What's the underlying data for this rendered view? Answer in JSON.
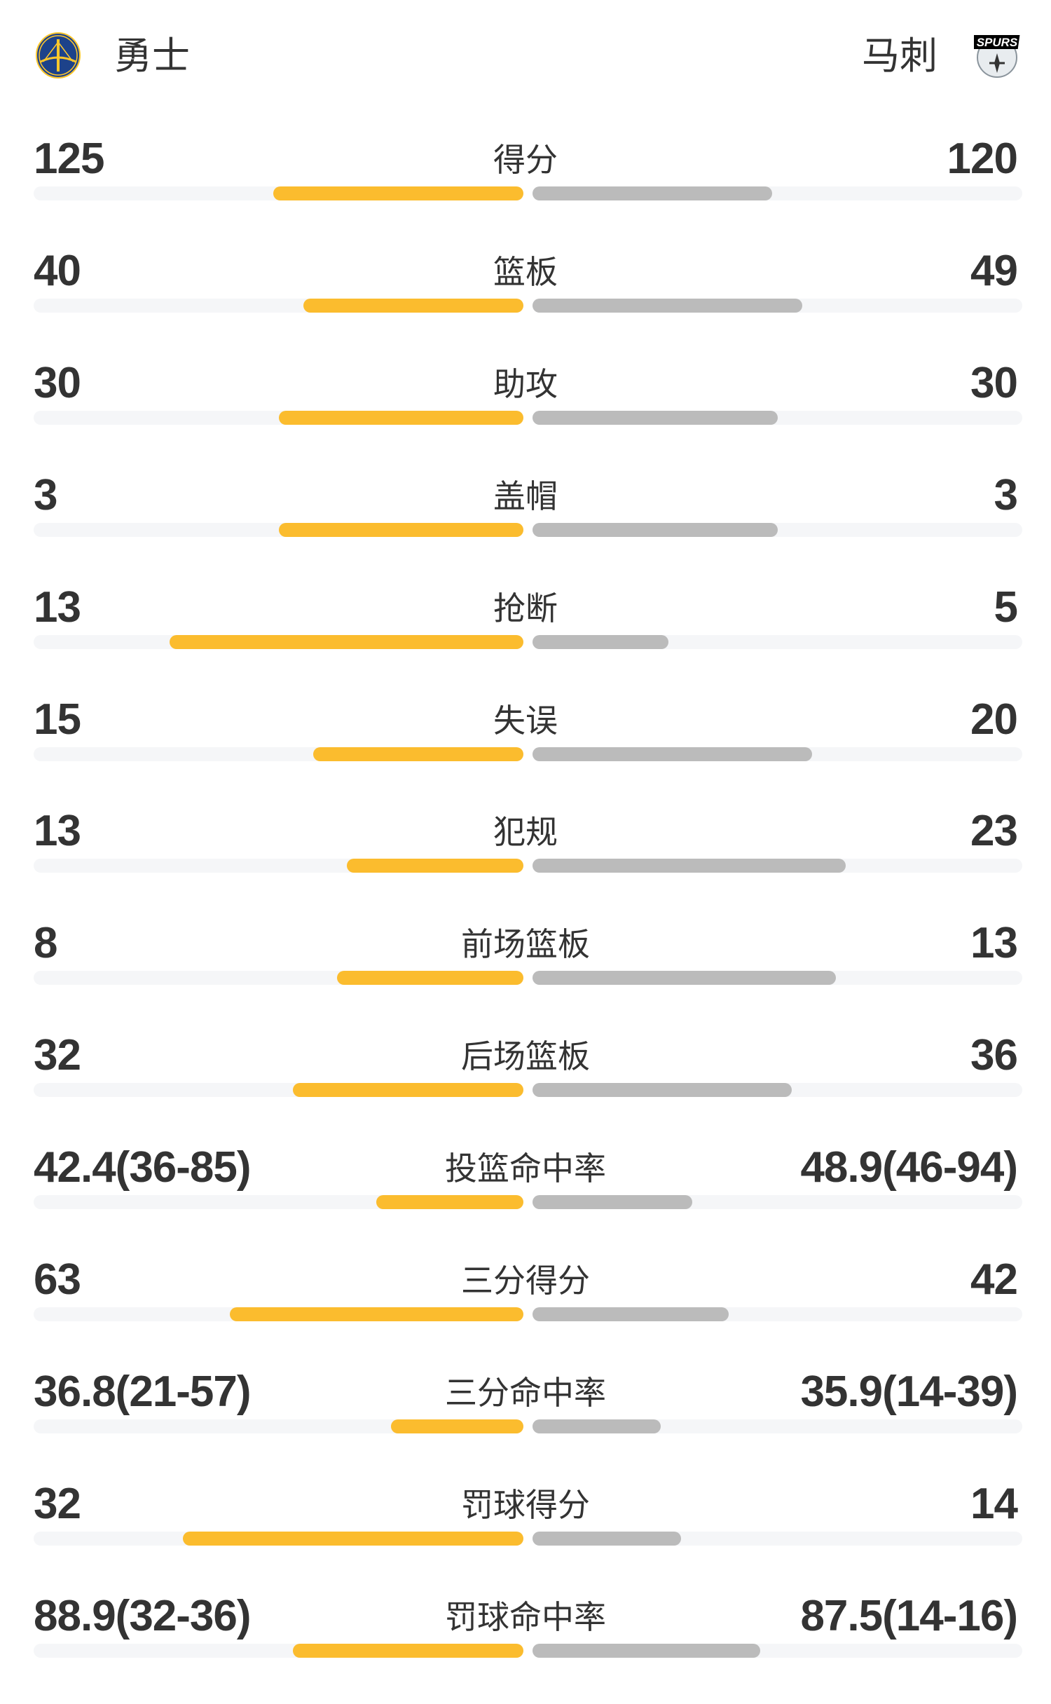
{
  "header": {
    "home_team": "勇士",
    "away_team": "马刺",
    "home_logo": "warriors-bridge-logo",
    "away_logo": "spurs-logo",
    "away_logo_text": "SPURS"
  },
  "colors": {
    "home_bar": "#FBBC2E",
    "away_bar": "#BBBBBB",
    "track": "#F5F6F8",
    "text": "#333333"
  },
  "stats": [
    {
      "label": "得分",
      "home": "125",
      "away": "120",
      "home_fill": 0.511,
      "away_fill": 0.489
    },
    {
      "label": "篮板",
      "home": "40",
      "away": "49",
      "home_fill": 0.449,
      "away_fill": 0.551
    },
    {
      "label": "助攻",
      "home": "30",
      "away": "30",
      "home_fill": 0.5,
      "away_fill": 0.5
    },
    {
      "label": "盖帽",
      "home": "3",
      "away": "3",
      "home_fill": 0.5,
      "away_fill": 0.5
    },
    {
      "label": "抢断",
      "home": "13",
      "away": "5",
      "home_fill": 0.722,
      "away_fill": 0.278
    },
    {
      "label": "失误",
      "home": "15",
      "away": "20",
      "home_fill": 0.429,
      "away_fill": 0.571
    },
    {
      "label": "犯规",
      "home": "13",
      "away": "23",
      "home_fill": 0.361,
      "away_fill": 0.639
    },
    {
      "label": "前场篮板",
      "home": "8",
      "away": "13",
      "home_fill": 0.381,
      "away_fill": 0.619
    },
    {
      "label": "后场篮板",
      "home": "32",
      "away": "36",
      "home_fill": 0.471,
      "away_fill": 0.529
    },
    {
      "label": "投篮命中率",
      "home": "42.4(36-85)",
      "away": "48.9(46-94)",
      "home_fill": 0.3,
      "away_fill": 0.326
    },
    {
      "label": "三分得分",
      "home": "63",
      "away": "42",
      "home_fill": 0.6,
      "away_fill": 0.4
    },
    {
      "label": "三分命中率",
      "home": "36.8(21-57)",
      "away": "35.9(14-39)",
      "home_fill": 0.271,
      "away_fill": 0.262
    },
    {
      "label": "罚球得分",
      "home": "32",
      "away": "14",
      "home_fill": 0.696,
      "away_fill": 0.304
    },
    {
      "label": "罚球命中率",
      "home": "88.9(32-36)",
      "away": "87.5(14-16)",
      "home_fill": 0.471,
      "away_fill": 0.465
    }
  ]
}
